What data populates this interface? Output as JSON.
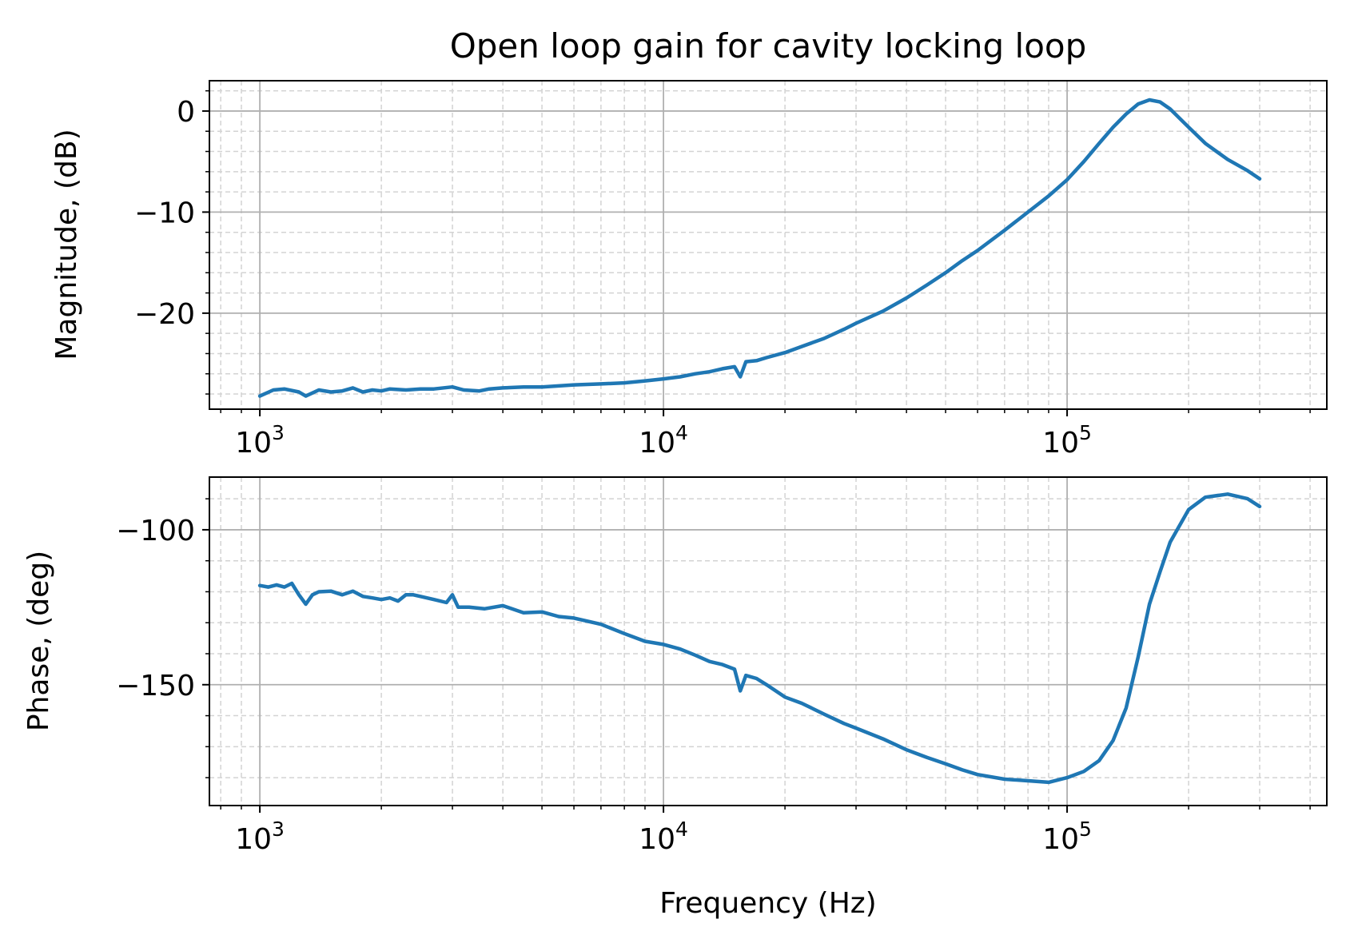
{
  "chart_data": [
    {
      "type": "line",
      "title": "Open loop gain for cavity locking loop",
      "xlabel": "",
      "ylabel": "Magnitude, (dB)",
      "xscale": "log",
      "xlim": [
        750,
        440000
      ],
      "ylim": [
        -29.5,
        3
      ],
      "xticks": [
        1000,
        10000,
        100000
      ],
      "xtick_labels": [
        {
          "base": "10",
          "exp": "3"
        },
        {
          "base": "10",
          "exp": "4"
        },
        {
          "base": "10",
          "exp": "5"
        }
      ],
      "yticks": [
        0,
        -10,
        -20
      ],
      "ytick_labels": [
        "0",
        "−10",
        "−20"
      ],
      "grid": "major solid, minor dashed",
      "color": "#1f77b4",
      "series": [
        {
          "x": [
            1000,
            1080,
            1150,
            1250,
            1300,
            1400,
            1500,
            1600,
            1700,
            1800,
            1900,
            2000,
            2100,
            2300,
            2500,
            2700,
            3000,
            3200,
            3500,
            3700,
            4000,
            4500,
            5000,
            5500,
            6000,
            7000,
            8000,
            9000,
            10000,
            11000,
            12000,
            13000,
            14000,
            15000,
            15500,
            16000,
            17000,
            18000,
            20000,
            22000,
            25000,
            28000,
            30000,
            35000,
            40000,
            45000,
            50000,
            55000,
            60000,
            70000,
            80000,
            90000,
            100000,
            110000,
            120000,
            130000,
            140000,
            150000,
            160000,
            170000,
            180000,
            200000,
            220000,
            250000,
            280000,
            300000
          ],
          "y": [
            -28.2,
            -27.6,
            -27.5,
            -27.8,
            -28.2,
            -27.6,
            -27.8,
            -27.7,
            -27.4,
            -27.8,
            -27.6,
            -27.7,
            -27.5,
            -27.6,
            -27.5,
            -27.5,
            -27.3,
            -27.6,
            -27.7,
            -27.5,
            -27.4,
            -27.3,
            -27.3,
            -27.2,
            -27.1,
            -27.0,
            -26.9,
            -26.7,
            -26.5,
            -26.3,
            -26.0,
            -25.8,
            -25.5,
            -25.3,
            -26.3,
            -24.8,
            -24.7,
            -24.4,
            -23.9,
            -23.3,
            -22.5,
            -21.6,
            -21.0,
            -19.8,
            -18.5,
            -17.2,
            -16.0,
            -14.8,
            -13.8,
            -11.8,
            -10.0,
            -8.4,
            -6.8,
            -5.0,
            -3.2,
            -1.6,
            -0.3,
            0.7,
            1.1,
            0.9,
            0.2,
            -1.6,
            -3.2,
            -4.8,
            -5.9,
            -6.7
          ]
        }
      ]
    },
    {
      "type": "line",
      "title": "",
      "xlabel": "Frequency (Hz)",
      "ylabel": "Phase, (deg)",
      "xscale": "log",
      "xlim": [
        750,
        440000
      ],
      "ylim": [
        -189,
        -83
      ],
      "xticks": [
        1000,
        10000,
        100000
      ],
      "xtick_labels": [
        {
          "base": "10",
          "exp": "3"
        },
        {
          "base": "10",
          "exp": "4"
        },
        {
          "base": "10",
          "exp": "5"
        }
      ],
      "yticks": [
        -100,
        -150
      ],
      "ytick_labels": [
        "−100",
        "−150"
      ],
      "grid": "major solid, minor dashed",
      "color": "#1f77b4",
      "series": [
        {
          "x": [
            1000,
            1050,
            1100,
            1150,
            1200,
            1250,
            1300,
            1350,
            1400,
            1500,
            1600,
            1700,
            1800,
            1900,
            2000,
            2100,
            2200,
            2300,
            2400,
            2500,
            2700,
            2900,
            3000,
            3100,
            3300,
            3600,
            4000,
            4500,
            5000,
            5500,
            6000,
            7000,
            8000,
            9000,
            10000,
            11000,
            12000,
            13000,
            14000,
            15000,
            15500,
            16000,
            17000,
            18000,
            20000,
            22000,
            25000,
            28000,
            30000,
            35000,
            40000,
            45000,
            50000,
            55000,
            60000,
            70000,
            80000,
            90000,
            100000,
            110000,
            120000,
            130000,
            140000,
            150000,
            160000,
            170000,
            180000,
            200000,
            220000,
            250000,
            280000,
            300000
          ],
          "y": [
            -118,
            -118.5,
            -117.8,
            -118.5,
            -117.3,
            -121,
            -124,
            -121,
            -120,
            -119.8,
            -121,
            -119.8,
            -121.5,
            -122,
            -122.5,
            -122,
            -123,
            -121,
            -121,
            -121.5,
            -122.5,
            -123.5,
            -121,
            -125,
            -125,
            -125.5,
            -124.5,
            -126.8,
            -126.5,
            -128,
            -128.5,
            -130.5,
            -133.5,
            -136,
            -137,
            -138.5,
            -140.5,
            -142.5,
            -143.5,
            -145,
            -152,
            -147,
            -148,
            -150,
            -154,
            -156,
            -159.5,
            -162.5,
            -164,
            -167.5,
            -171,
            -173.5,
            -175.5,
            -177.5,
            -179,
            -180.5,
            -181,
            -181.5,
            -180,
            -178,
            -174.5,
            -168,
            -157.5,
            -141,
            -124,
            -113.5,
            -104,
            -93.5,
            -89.5,
            -88.5,
            -90,
            -92.5
          ]
        }
      ]
    }
  ]
}
